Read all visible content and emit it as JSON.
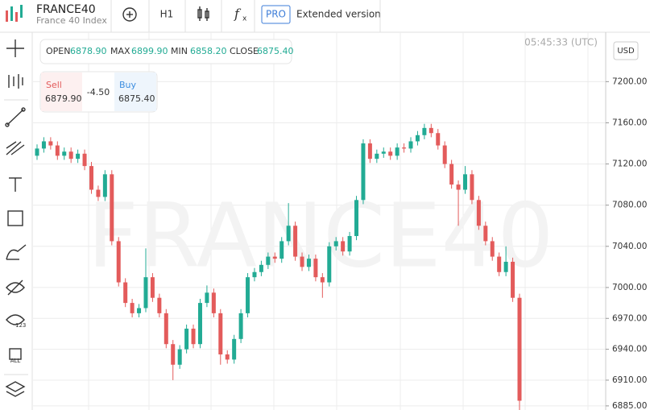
{
  "header": {
    "symbol": "FRANCE40",
    "name": "France 40 Index",
    "timeframe": "H1",
    "pro": "PRO",
    "extended": "Extended version"
  },
  "time": "05:45:33 (UTC)",
  "currency": "USD",
  "ohlc": {
    "open_label": "OPEN",
    "open": "6878.90",
    "max_label": "MAX",
    "max": "6899.90",
    "min_label": "MIN",
    "min": "6858.20",
    "close_label": "CLOSE",
    "close": "6875.40"
  },
  "quote": {
    "sell_label": "Sell",
    "sell": "6879.90",
    "spread": "-4.50",
    "buy_label": "Buy",
    "buy": "6875.40"
  },
  "chart_data": {
    "type": "candlestick",
    "watermark": "FRANCE40",
    "up_color": "#22ab94",
    "down_color": "#e35b5b",
    "grid": true,
    "ylim": [
      6881,
      7248
    ],
    "yticks": [
      {
        "value": 7200,
        "label": "7200.00"
      },
      {
        "value": 7160,
        "label": "7160.00"
      },
      {
        "value": 7120,
        "label": "7120.00"
      },
      {
        "value": 7080,
        "label": "7080.00"
      },
      {
        "value": 7040,
        "label": "7040.00"
      },
      {
        "value": 7000,
        "label": "7000.00"
      },
      {
        "value": 6970,
        "label": "6970.00"
      },
      {
        "value": 6940,
        "label": "6940.00"
      },
      {
        "value": 6910,
        "label": "6910.00"
      },
      {
        "value": 6885,
        "label": "6885.00"
      }
    ],
    "open": [
      7128,
      7135,
      7142,
      7138,
      7128,
      7132,
      7125,
      7130,
      7118,
      7095,
      7088,
      7110,
      7045,
      7005,
      6985,
      6975,
      6980,
      7010,
      6990,
      6975,
      6945,
      6925,
      6940,
      6960,
      6945,
      6985,
      6995,
      6975,
      6935,
      6930,
      6950,
      6975,
      7010,
      7015,
      7022,
      7030,
      7028,
      7045,
      7060,
      7030,
      7020,
      7028,
      7010,
      7005,
      7040,
      7045,
      7035,
      7050,
      7085,
      7140,
      7125,
      7130,
      7132,
      7128,
      7136,
      7135,
      7142,
      7148,
      7155,
      7150,
      7138,
      7120,
      7100,
      7095,
      7110,
      7085,
      7060,
      7045,
      7030,
      7015,
      7025,
      6990
    ],
    "high": [
      7139,
      7146,
      7146,
      7142,
      7136,
      7136,
      7134,
      7134,
      7122,
      7099,
      7114,
      7114,
      7049,
      7009,
      6989,
      6984,
      7038,
      7014,
      6994,
      6979,
      6949,
      6944,
      6964,
      6964,
      6989,
      7002,
      6999,
      6979,
      6939,
      6954,
      6979,
      7014,
      7019,
      7026,
      7034,
      7034,
      7049,
      7082,
      7064,
      7034,
      7032,
      7032,
      7014,
      7044,
      7049,
      7049,
      7054,
      7089,
      7144,
      7144,
      7134,
      7136,
      7136,
      7140,
      7140,
      7146,
      7152,
      7159,
      7159,
      7154,
      7142,
      7124,
      7104,
      7118,
      7114,
      7089,
      7064,
      7049,
      7034,
      7040,
      7029,
      6994
    ],
    "low": [
      7124,
      7131,
      7134,
      7124,
      7124,
      7121,
      7121,
      7114,
      7091,
      7084,
      7084,
      7041,
      7001,
      6981,
      6971,
      6971,
      6976,
      6986,
      6971,
      6941,
      6910,
      6921,
      6936,
      6941,
      6941,
      6981,
      6971,
      6925,
      6926,
      6926,
      6946,
      6971,
      7006,
      7011,
      7018,
      7024,
      7024,
      7041,
      7026,
      7016,
      7016,
      7006,
      6990,
      7001,
      7036,
      7031,
      7031,
      7046,
      7081,
      7121,
      7121,
      7126,
      7124,
      7124,
      7131,
      7131,
      7138,
      7144,
      7146,
      7134,
      7116,
      7096,
      7060,
      7091,
      7081,
      7056,
      7041,
      7026,
      7011,
      7011,
      6986,
      6881
    ],
    "close": [
      7135,
      7142,
      7138,
      7128,
      7132,
      7125,
      7130,
      7118,
      7095,
      7088,
      7110,
      7045,
      7005,
      6985,
      6975,
      6980,
      7010,
      6990,
      6975,
      6945,
      6925,
      6940,
      6960,
      6945,
      6985,
      6995,
      6975,
      6935,
      6930,
      6950,
      6975,
      7010,
      7015,
      7022,
      7030,
      7028,
      7045,
      7060,
      7030,
      7020,
      7028,
      7010,
      7005,
      7040,
      7045,
      7035,
      7050,
      7085,
      7140,
      7125,
      7130,
      7132,
      7128,
      7136,
      7135,
      7142,
      7148,
      7155,
      7150,
      7138,
      7120,
      7100,
      7095,
      7110,
      7085,
      7060,
      7045,
      7030,
      7015,
      7025,
      6990,
      6890
    ]
  }
}
